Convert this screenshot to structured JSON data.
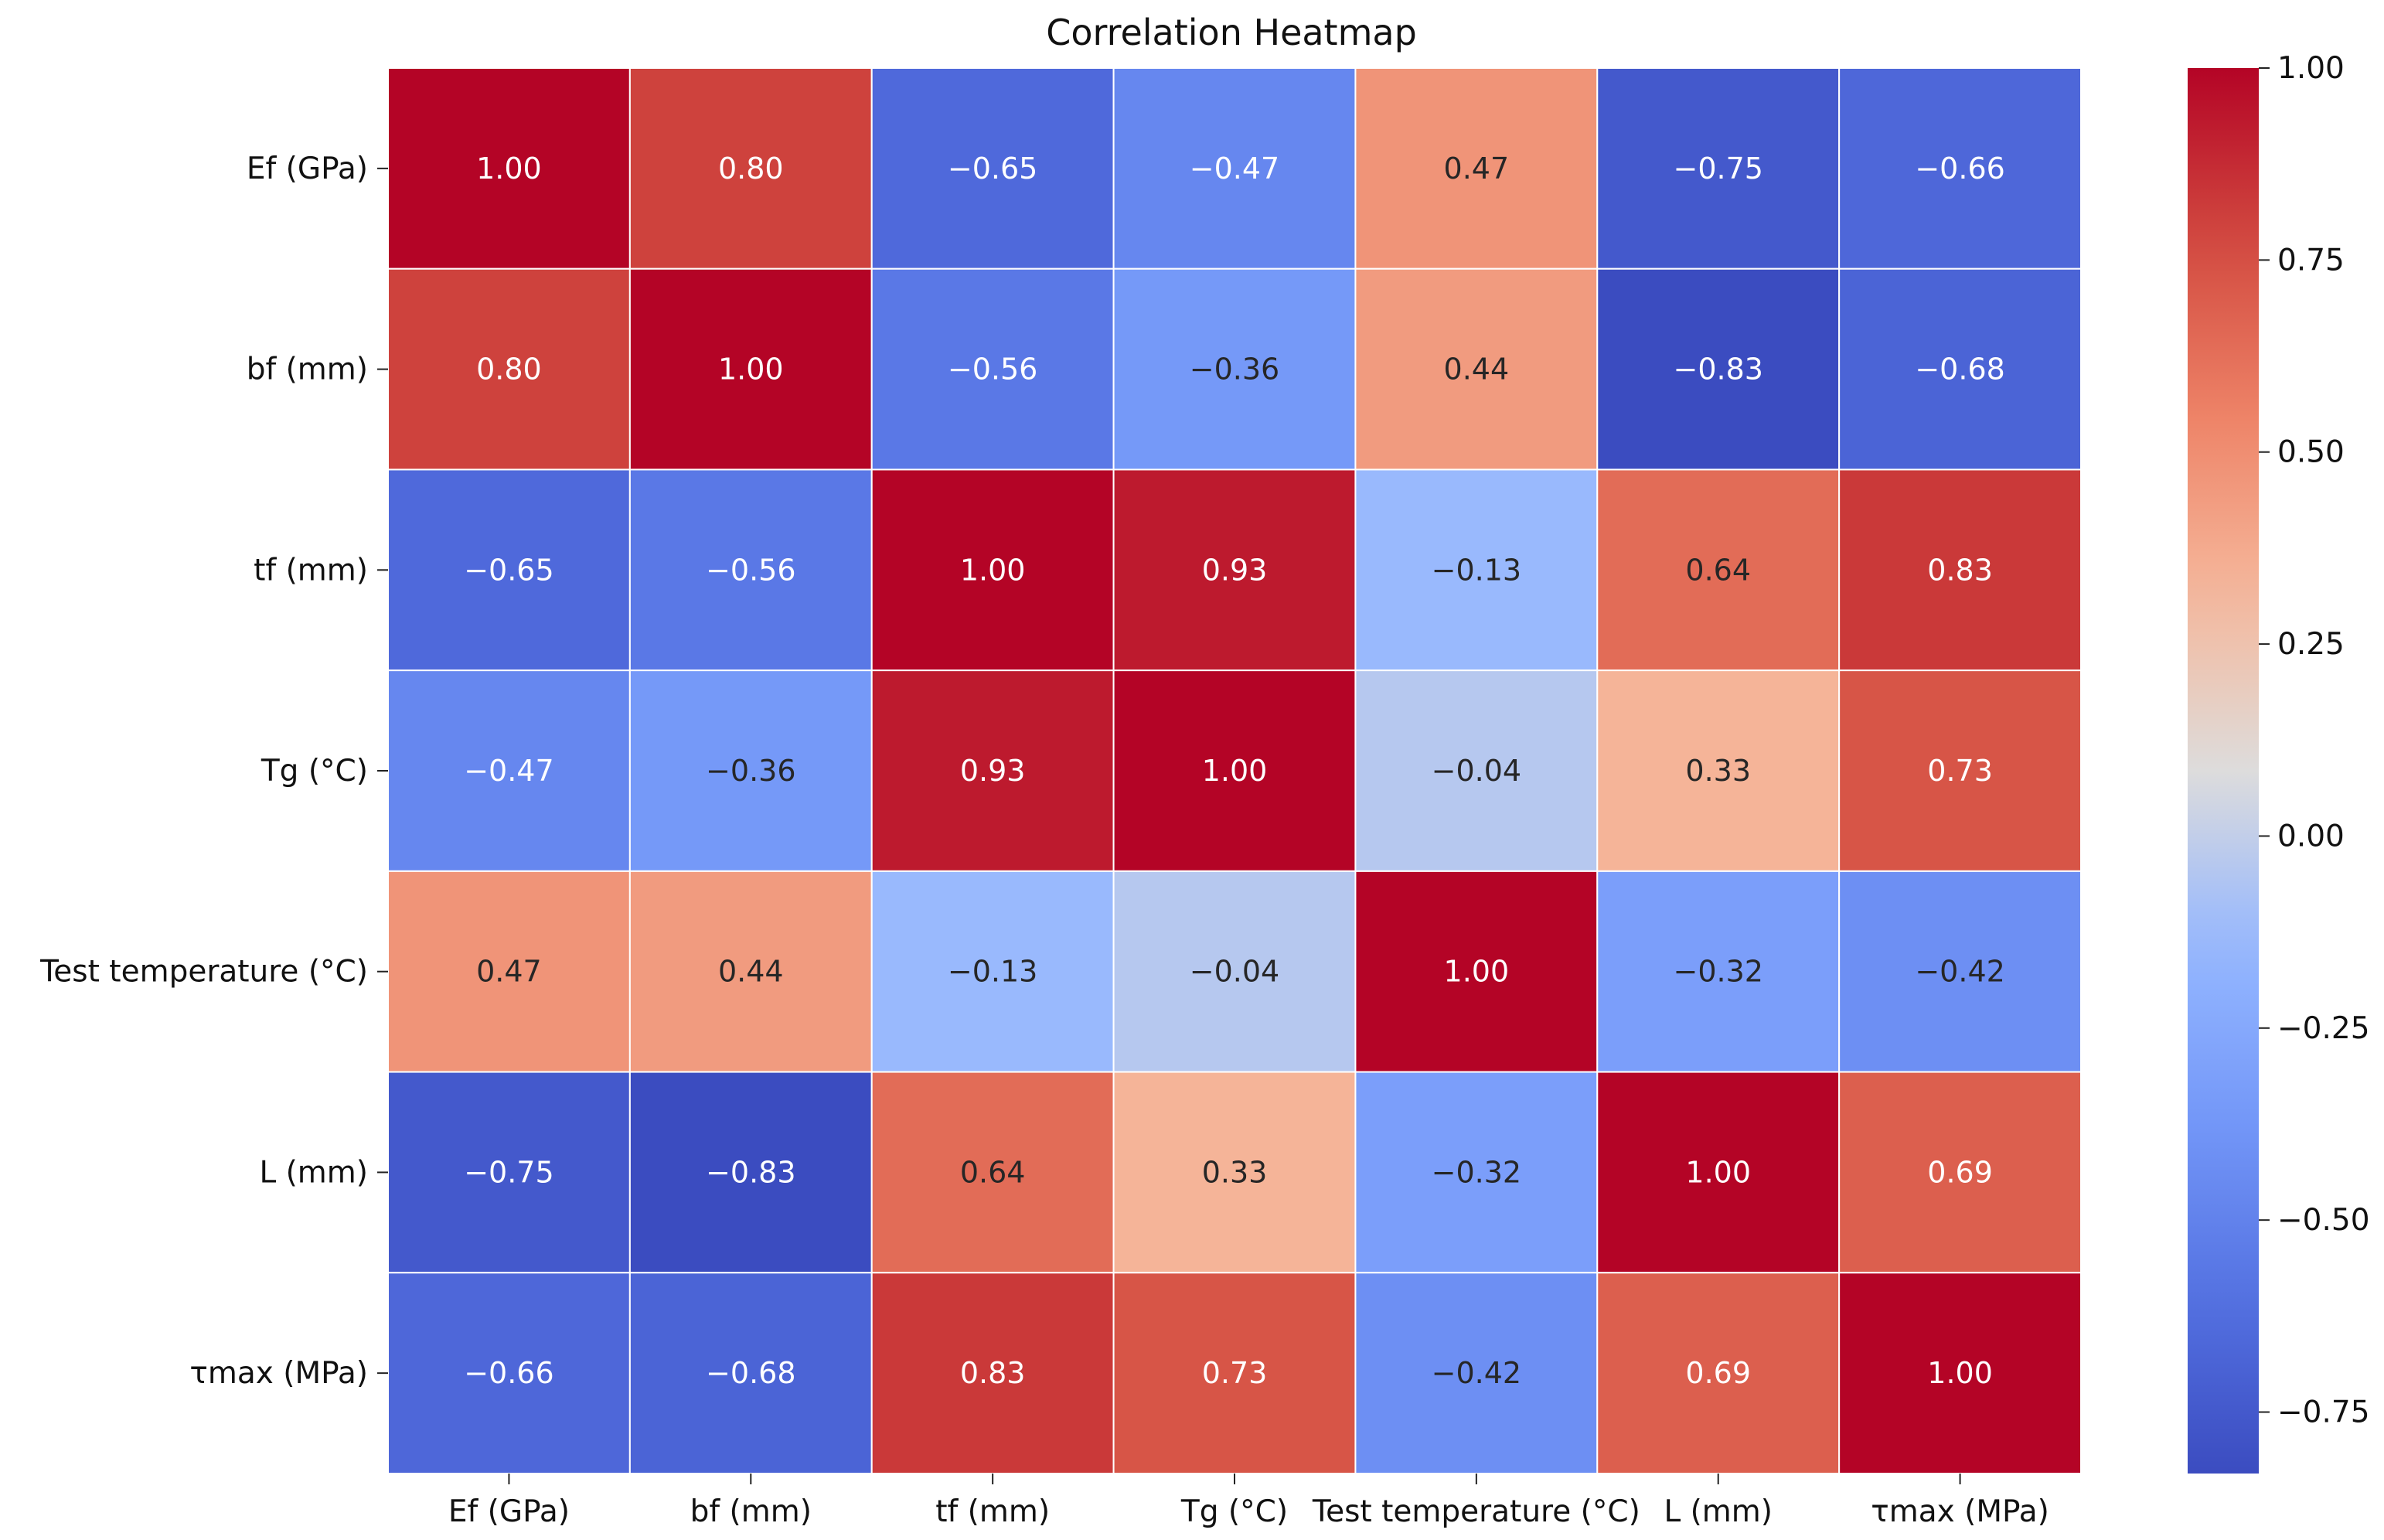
{
  "chart_data": {
    "type": "heatmap",
    "title": "Correlation Heatmap",
    "colormap": "coolwarm",
    "row_labels": [
      "Ef (GPa)",
      "bf (mm)",
      "tf (mm)",
      "Tg (°C)",
      "Test temperature (°C)",
      "L (mm)",
      "τmax (MPa)"
    ],
    "col_labels": [
      "Ef (GPa)",
      "bf (mm)",
      "tf (mm)",
      "Tg (°C)",
      "Test temperature (°C)",
      "L (mm)",
      "τmax (MPa)"
    ],
    "values": [
      [
        1.0,
        0.8,
        -0.65,
        -0.47,
        0.47,
        -0.75,
        -0.66
      ],
      [
        0.8,
        1.0,
        -0.56,
        -0.36,
        0.44,
        -0.83,
        -0.68
      ],
      [
        -0.65,
        -0.56,
        1.0,
        0.93,
        -0.13,
        0.64,
        0.83
      ],
      [
        -0.47,
        -0.36,
        0.93,
        1.0,
        -0.04,
        0.33,
        0.73
      ],
      [
        0.47,
        0.44,
        -0.13,
        -0.04,
        1.0,
        -0.32,
        -0.42
      ],
      [
        -0.75,
        -0.83,
        0.64,
        0.33,
        -0.32,
        1.0,
        0.69
      ],
      [
        -0.66,
        -0.68,
        0.83,
        0.73,
        -0.42,
        0.69,
        1.0
      ]
    ],
    "colorbar": {
      "range": [
        -0.83,
        1.0
      ],
      "ticks": [
        1.0,
        0.75,
        0.5,
        0.25,
        0.0,
        -0.25,
        -0.5,
        -0.75
      ],
      "tick_labels": [
        "1.00",
        "0.75",
        "0.50",
        "0.25",
        "0.00",
        "−0.25",
        "−0.50",
        "−0.75"
      ]
    },
    "annotation_format": "0.00",
    "grid": true
  }
}
